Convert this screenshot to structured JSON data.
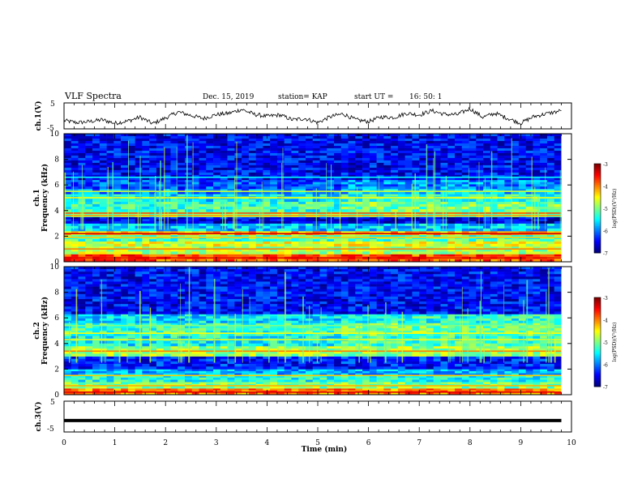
{
  "header": {
    "title": "VLF Spectra",
    "date": "Dec. 15, 2019",
    "station": "station= KAP",
    "start_label": "start  UT =",
    "start_time": "16: 50: 1"
  },
  "chart_data": [
    {
      "type": "line",
      "panel": "ch1-waveform",
      "ylabel": "ch.1(V)",
      "ylim": [
        -5,
        5
      ],
      "yticks": [
        "5",
        "-5"
      ],
      "x_unit": "min",
      "x": [
        0,
        0.25,
        0.5,
        0.75,
        1,
        1.25,
        1.5,
        1.75,
        2,
        2.25,
        2.5,
        2.75,
        3,
        3.25,
        3.5,
        3.75,
        4,
        4.25,
        4.5,
        4.75,
        5,
        5.25,
        5.5,
        5.75,
        6,
        6.25,
        6.5,
        6.75,
        7,
        7.25,
        7.5,
        7.75,
        8,
        8.25,
        8.5,
        8.75,
        9,
        9.25,
        9.5,
        9.8
      ],
      "y": [
        -1.8,
        -2.6,
        -2.2,
        -1.5,
        -2.8,
        -2.0,
        -0.5,
        -3.0,
        -0.8,
        1.5,
        0.2,
        -1.0,
        0.5,
        1.0,
        2.5,
        0.6,
        -0.2,
        0.4,
        -1.5,
        -1.0,
        -2.6,
        -0.3,
        0.8,
        -1.5,
        -2.2,
        -0.4,
        -0.6,
        1.0,
        0.4,
        2.0,
        0.6,
        0.5,
        2.8,
        -0.5,
        1.0,
        -1.0,
        -2.8,
        -0.3,
        0.8,
        2.0
      ]
    },
    {
      "type": "heatmap",
      "panel": "ch1-spectrogram",
      "ylabel_channel": "ch.1",
      "ylabel": "Frequency (kHz)",
      "ylim": [
        0,
        10
      ],
      "yticks": [
        "0",
        "2",
        "4",
        "6",
        "8",
        "10"
      ],
      "colorbar": {
        "label": "log(PSD)(V²/Hz)",
        "range": [
          -7,
          -3
        ],
        "ticks": [
          "-3",
          "-4",
          "-5",
          "-6",
          "-7"
        ]
      },
      "base_bands": [
        [
          0,
          0.6,
          -3.8
        ],
        [
          0.6,
          1.2,
          -4.8
        ],
        [
          1.2,
          1.6,
          -4.6
        ],
        [
          1.6,
          2.1,
          -5.2
        ],
        [
          2.1,
          2.4,
          -4.2
        ],
        [
          2.4,
          3.0,
          -5.7
        ],
        [
          3.0,
          3.5,
          -6.6
        ],
        [
          3.5,
          3.9,
          -5.0
        ],
        [
          3.9,
          4.7,
          -5.3
        ],
        [
          4.7,
          5.3,
          -5.6
        ],
        [
          5.3,
          5.7,
          -6.0
        ],
        [
          5.7,
          6.4,
          -6.2
        ],
        [
          6.4,
          10.0,
          -6.5
        ]
      ],
      "lines": [
        [
          0.3,
          -3.4
        ],
        [
          1.0,
          -4.0
        ],
        [
          1.9,
          -4.3
        ],
        [
          2.2,
          -3.3
        ],
        [
          3.6,
          -4.1
        ],
        [
          3.8,
          -3.8
        ],
        [
          5.0,
          -4.5
        ],
        [
          5.5,
          -4.7
        ],
        [
          6.6,
          -5.5
        ]
      ]
    },
    {
      "type": "heatmap",
      "panel": "ch2-spectrogram",
      "ylabel_channel": "ch.2",
      "ylabel": "Frequency (kHz)",
      "ylim": [
        0,
        10
      ],
      "yticks": [
        "0",
        "2",
        "4",
        "6",
        "8",
        "10"
      ],
      "colorbar": {
        "label": "log(PSD)(V²/Hz)",
        "range": [
          -7,
          -3
        ],
        "ticks": [
          "-3",
          "-4",
          "-5",
          "-6",
          "-7"
        ]
      },
      "base_bands": [
        [
          0,
          0.5,
          -4.0
        ],
        [
          0.5,
          1.0,
          -5.0
        ],
        [
          1.0,
          1.5,
          -5.4
        ],
        [
          1.5,
          2.0,
          -5.8
        ],
        [
          2.0,
          3.0,
          -6.4
        ],
        [
          3.0,
          3.8,
          -4.9
        ],
        [
          3.8,
          4.6,
          -5.5
        ],
        [
          4.6,
          5.6,
          -5.3
        ],
        [
          5.6,
          6.3,
          -5.6
        ],
        [
          6.3,
          10.0,
          -6.5
        ]
      ],
      "lines": [
        [
          0.2,
          -3.4
        ],
        [
          0.7,
          -4.2
        ],
        [
          1.5,
          -4.3
        ],
        [
          3.4,
          -4.0
        ],
        [
          4.3,
          -4.6
        ],
        [
          4.8,
          -4.5
        ],
        [
          5.4,
          -5.0
        ]
      ]
    },
    {
      "type": "line",
      "panel": "ch3-waveform",
      "ylabel": "ch.3(V)",
      "ylim": [
        -5,
        5
      ],
      "yticks": [
        "5",
        "-5"
      ],
      "x": [
        0,
        9.8
      ],
      "y": [
        -1.3,
        -1.3
      ]
    }
  ],
  "xaxis": {
    "label": "Time  (min)",
    "ticks": [
      "0",
      "1",
      "2",
      "3",
      "4",
      "5",
      "6",
      "7",
      "8",
      "9",
      "10"
    ],
    "range": [
      0,
      10
    ]
  }
}
